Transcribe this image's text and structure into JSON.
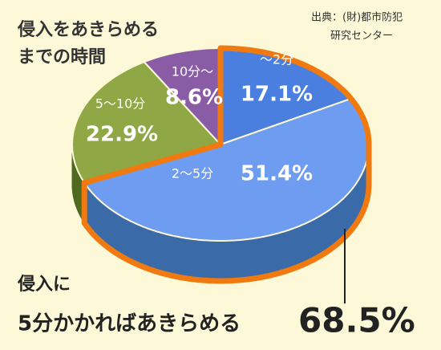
{
  "chart_data": {
    "type": "pie",
    "title_lines": [
      "侵入をあきらめる",
      "までの時間"
    ],
    "source_lines": [
      "出典：(財)都市防犯",
      "研究センター"
    ],
    "categories": [
      "〜2分",
      "2〜5分",
      "5〜10分",
      "10分〜"
    ],
    "values": [
      17.1,
      51.4,
      22.9,
      8.6
    ],
    "value_labels": [
      "17.1%",
      "51.4%",
      "22.9%",
      "8.6%"
    ],
    "colors": [
      "#4a7fe0",
      "#6d9cf0",
      "#8fa845",
      "#8b5ca6"
    ],
    "side_colors": [
      "#2f5f9e",
      "#3a6aa8",
      "#4f6a1f",
      "#5a3470"
    ],
    "highlight": [
      0,
      1
    ],
    "highlight_color": "#f07a10",
    "annotation_lines": [
      "侵入に",
      "5分かかればあきらめる"
    ],
    "annotation_total": {
      "value": 68.5,
      "label": "68.5%"
    }
  }
}
